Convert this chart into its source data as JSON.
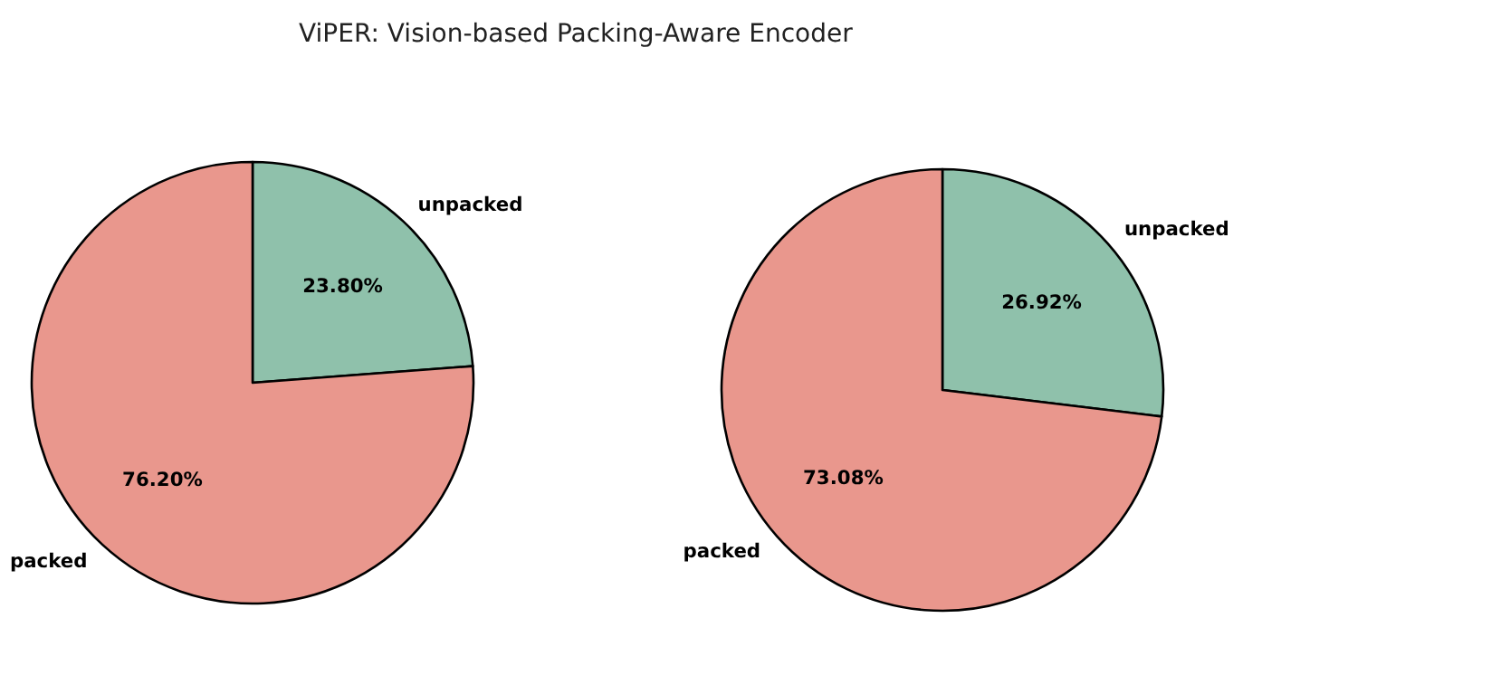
{
  "chart_data": [
    {
      "type": "pie",
      "title": "ViPER: Vision-based Packing-Aware Encoder",
      "categories": [
        "unpacked",
        "packed"
      ],
      "values": [
        23.8,
        76.2
      ],
      "colors": [
        "#8fc1ab",
        "#e9978d"
      ],
      "value_labels": [
        "23.80%",
        "76.20%"
      ]
    },
    {
      "type": "pie",
      "categories": [
        "unpacked",
        "packed"
      ],
      "values": [
        26.92,
        73.08
      ],
      "colors": [
        "#8fc1ab",
        "#e9978d"
      ],
      "value_labels": [
        "26.92%",
        "73.08%"
      ]
    }
  ]
}
